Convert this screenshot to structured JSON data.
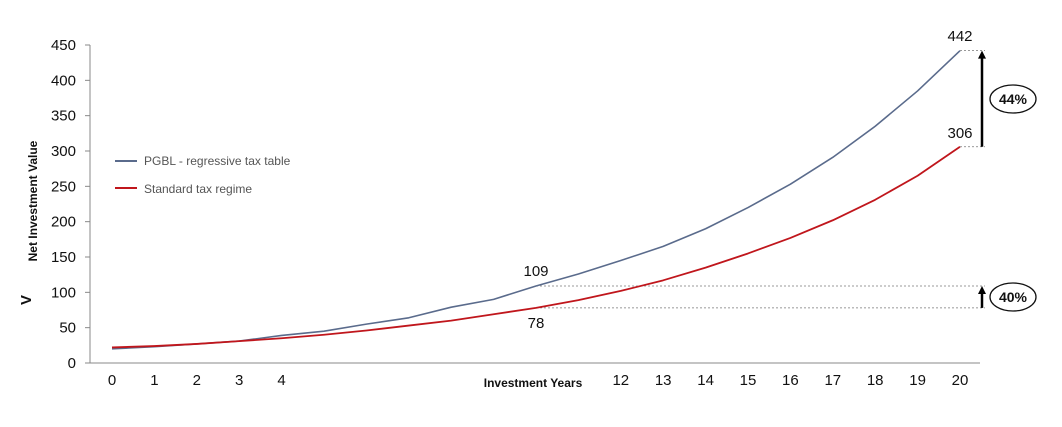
{
  "chart_data": {
    "type": "line",
    "ylabel": "Net Investment Value",
    "ylabel_prefix": "V",
    "xlabel": "Investment Years",
    "ylim": [
      0,
      450
    ],
    "yticks": [
      0,
      50,
      100,
      150,
      200,
      250,
      300,
      350,
      400,
      450
    ],
    "x_tick_labels": [
      "0",
      "1",
      "2",
      "3",
      "4",
      "12",
      "13",
      "14",
      "15",
      "16",
      "17",
      "18",
      "19",
      "20"
    ],
    "x": [
      0,
      1,
      2,
      3,
      4,
      5,
      6,
      7,
      8,
      9,
      10,
      11,
      12,
      13,
      14,
      15,
      16,
      17,
      18,
      19,
      20
    ],
    "series": [
      {
        "name": "PGBL - regressive tax table",
        "color": "#5a6b8c",
        "values": [
          20,
          23,
          27,
          31,
          39,
          45,
          55,
          64,
          79,
          90,
          109,
          126,
          145,
          165,
          190,
          220,
          253,
          291,
          335,
          385,
          442
        ]
      },
      {
        "name": "Standard tax regime",
        "color": "#c0161c",
        "values": [
          22,
          24,
          27,
          31,
          35,
          40,
          46,
          53,
          60,
          69,
          78,
          89,
          102,
          117,
          135,
          155,
          177,
          202,
          231,
          265,
          306
        ]
      }
    ],
    "legend_position": "left",
    "annotations": {
      "data_labels": [
        "109",
        "78",
        "442",
        "306"
      ],
      "percent_labels": [
        "44%",
        "40%"
      ]
    }
  }
}
